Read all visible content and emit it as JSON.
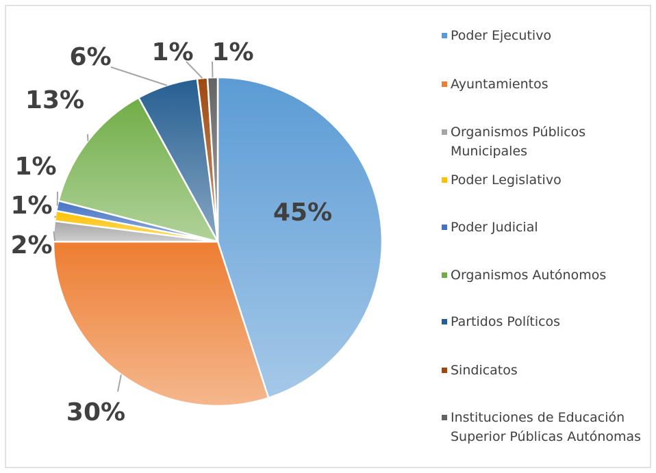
{
  "chart_data": {
    "type": "pie",
    "categories": [
      "Poder Ejecutivo",
      "Ayuntamientos",
      "Organismos Públicos Municipales",
      "Poder Legislativo",
      "Poder Judicial",
      "Organismos Autónomos",
      "Partidos Políticos",
      "Sindicatos",
      "Instituciones de Educación Superior Públicas Autónomas"
    ],
    "values": [
      45,
      30,
      2,
      1,
      1,
      13,
      6,
      1,
      1
    ],
    "value_labels": [
      "45%",
      "30%",
      "2%",
      "1%",
      "1%",
      "13%",
      "6%",
      "1%",
      "1%"
    ],
    "colors": [
      "#5b9bd5",
      "#ed7d31",
      "#a5a5a5",
      "#ffc000",
      "#4472c4",
      "#70ad47",
      "#255e91",
      "#9e480e",
      "#636363"
    ],
    "legend": "right"
  }
}
